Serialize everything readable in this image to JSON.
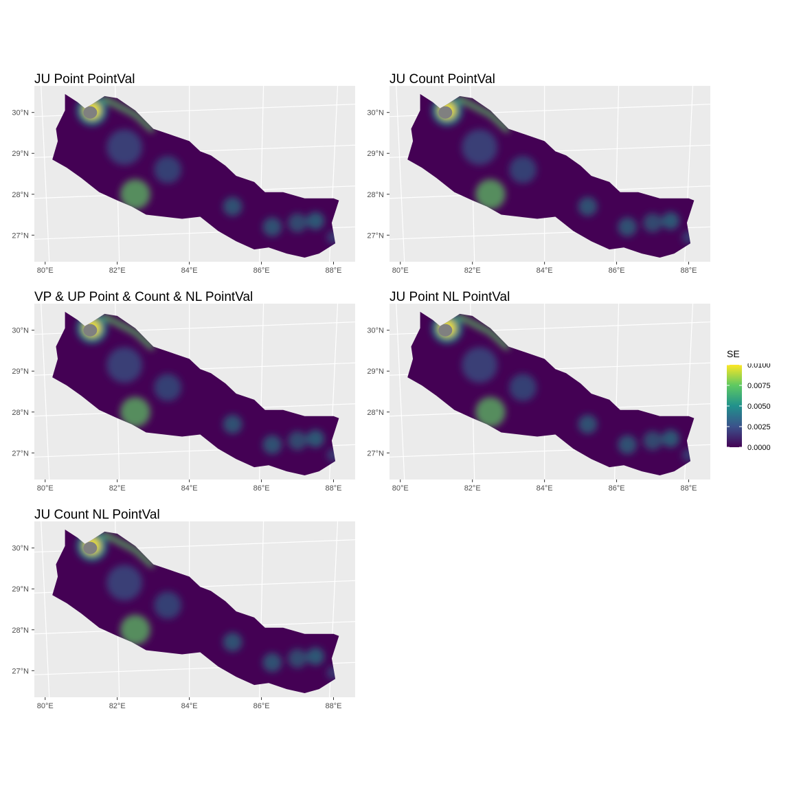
{
  "panels": [
    {
      "title": "JU Point PointVal"
    },
    {
      "title": "JU Count PointVal"
    },
    {
      "title": "VP & UP Point & Count & NL PointVal"
    },
    {
      "title": "JU Point NL PointVal"
    },
    {
      "title": "JU Count NL PointVal"
    }
  ],
  "axes": {
    "x_ticks": [
      "80°E",
      "82°E",
      "84°E",
      "86°E",
      "88°E"
    ],
    "y_ticks": [
      "30°N",
      "29°N",
      "28°N",
      "27°N"
    ]
  },
  "legend": {
    "title": "SE",
    "labels": [
      "0.0100",
      "0.0075",
      "0.0050",
      "0.0025",
      "0.0000"
    ],
    "colors": [
      "#fde725",
      "#5ec962",
      "#21918c",
      "#3b528b",
      "#440154"
    ]
  },
  "colors": {
    "panel_background": "#ebebeb",
    "grid": "#ffffff",
    "low_value_fill": "#440154",
    "mid_value": "#21918c",
    "high_value": "#fde725",
    "masked": "#808080"
  }
}
